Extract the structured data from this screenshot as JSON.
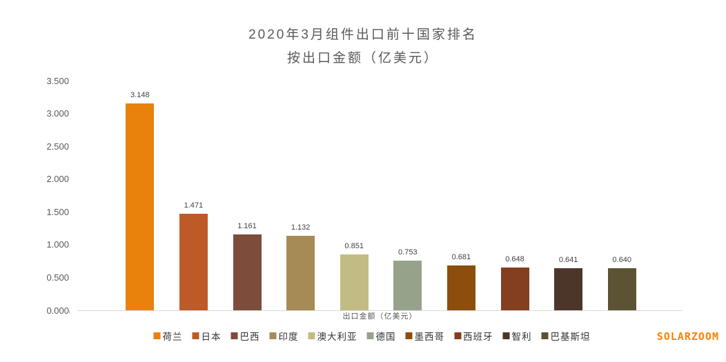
{
  "title": {
    "line1": "2020年3月组件出口前十国家排名",
    "line2": "按出口金额（亿美元）"
  },
  "watermark": "SOLARZOOM",
  "chart_data": {
    "type": "bar",
    "title": "2020年3月组件出口前十国家排名 按出口金额（亿美元）",
    "categories": [
      "荷兰",
      "日本",
      "巴西",
      "印度",
      "澳大利亚",
      "德国",
      "墨西哥",
      "西班牙",
      "智利",
      "巴基斯坦"
    ],
    "values": [
      3.148,
      1.471,
      1.161,
      1.132,
      0.851,
      0.753,
      0.681,
      0.648,
      0.641,
      0.64
    ],
    "value_labels": [
      "3.148",
      "1.471",
      "1.161",
      "1.132",
      "0.851",
      "0.753",
      "0.681",
      "0.648",
      "0.641",
      "0.640"
    ],
    "bar_colors": [
      "#E8820D",
      "#BE5A28",
      "#7D4C3B",
      "#A68B57",
      "#C2BC84",
      "#97A28B",
      "#8C4D0D",
      "#833F20",
      "#4C362A",
      "#5C5334"
    ],
    "xlabel": "出口金额（亿美元）",
    "ylabel": "",
    "ylim": [
      0,
      3.5
    ],
    "ytick_step": 0.5,
    "yticks": [
      "0.000",
      "0.500",
      "1.000",
      "1.500",
      "2.000",
      "2.500",
      "3.000",
      "3.500"
    ],
    "legend_position": "bottom",
    "grid": false
  },
  "colors": {
    "title_text": "#595959",
    "axis_text": "#595959",
    "value_label_text": "#404040",
    "legend_text": "#333333",
    "baseline": "#D9D9D9",
    "tick": "#BFBFBF",
    "watermark": "#FF8000",
    "background": "#FFFFFF"
  }
}
